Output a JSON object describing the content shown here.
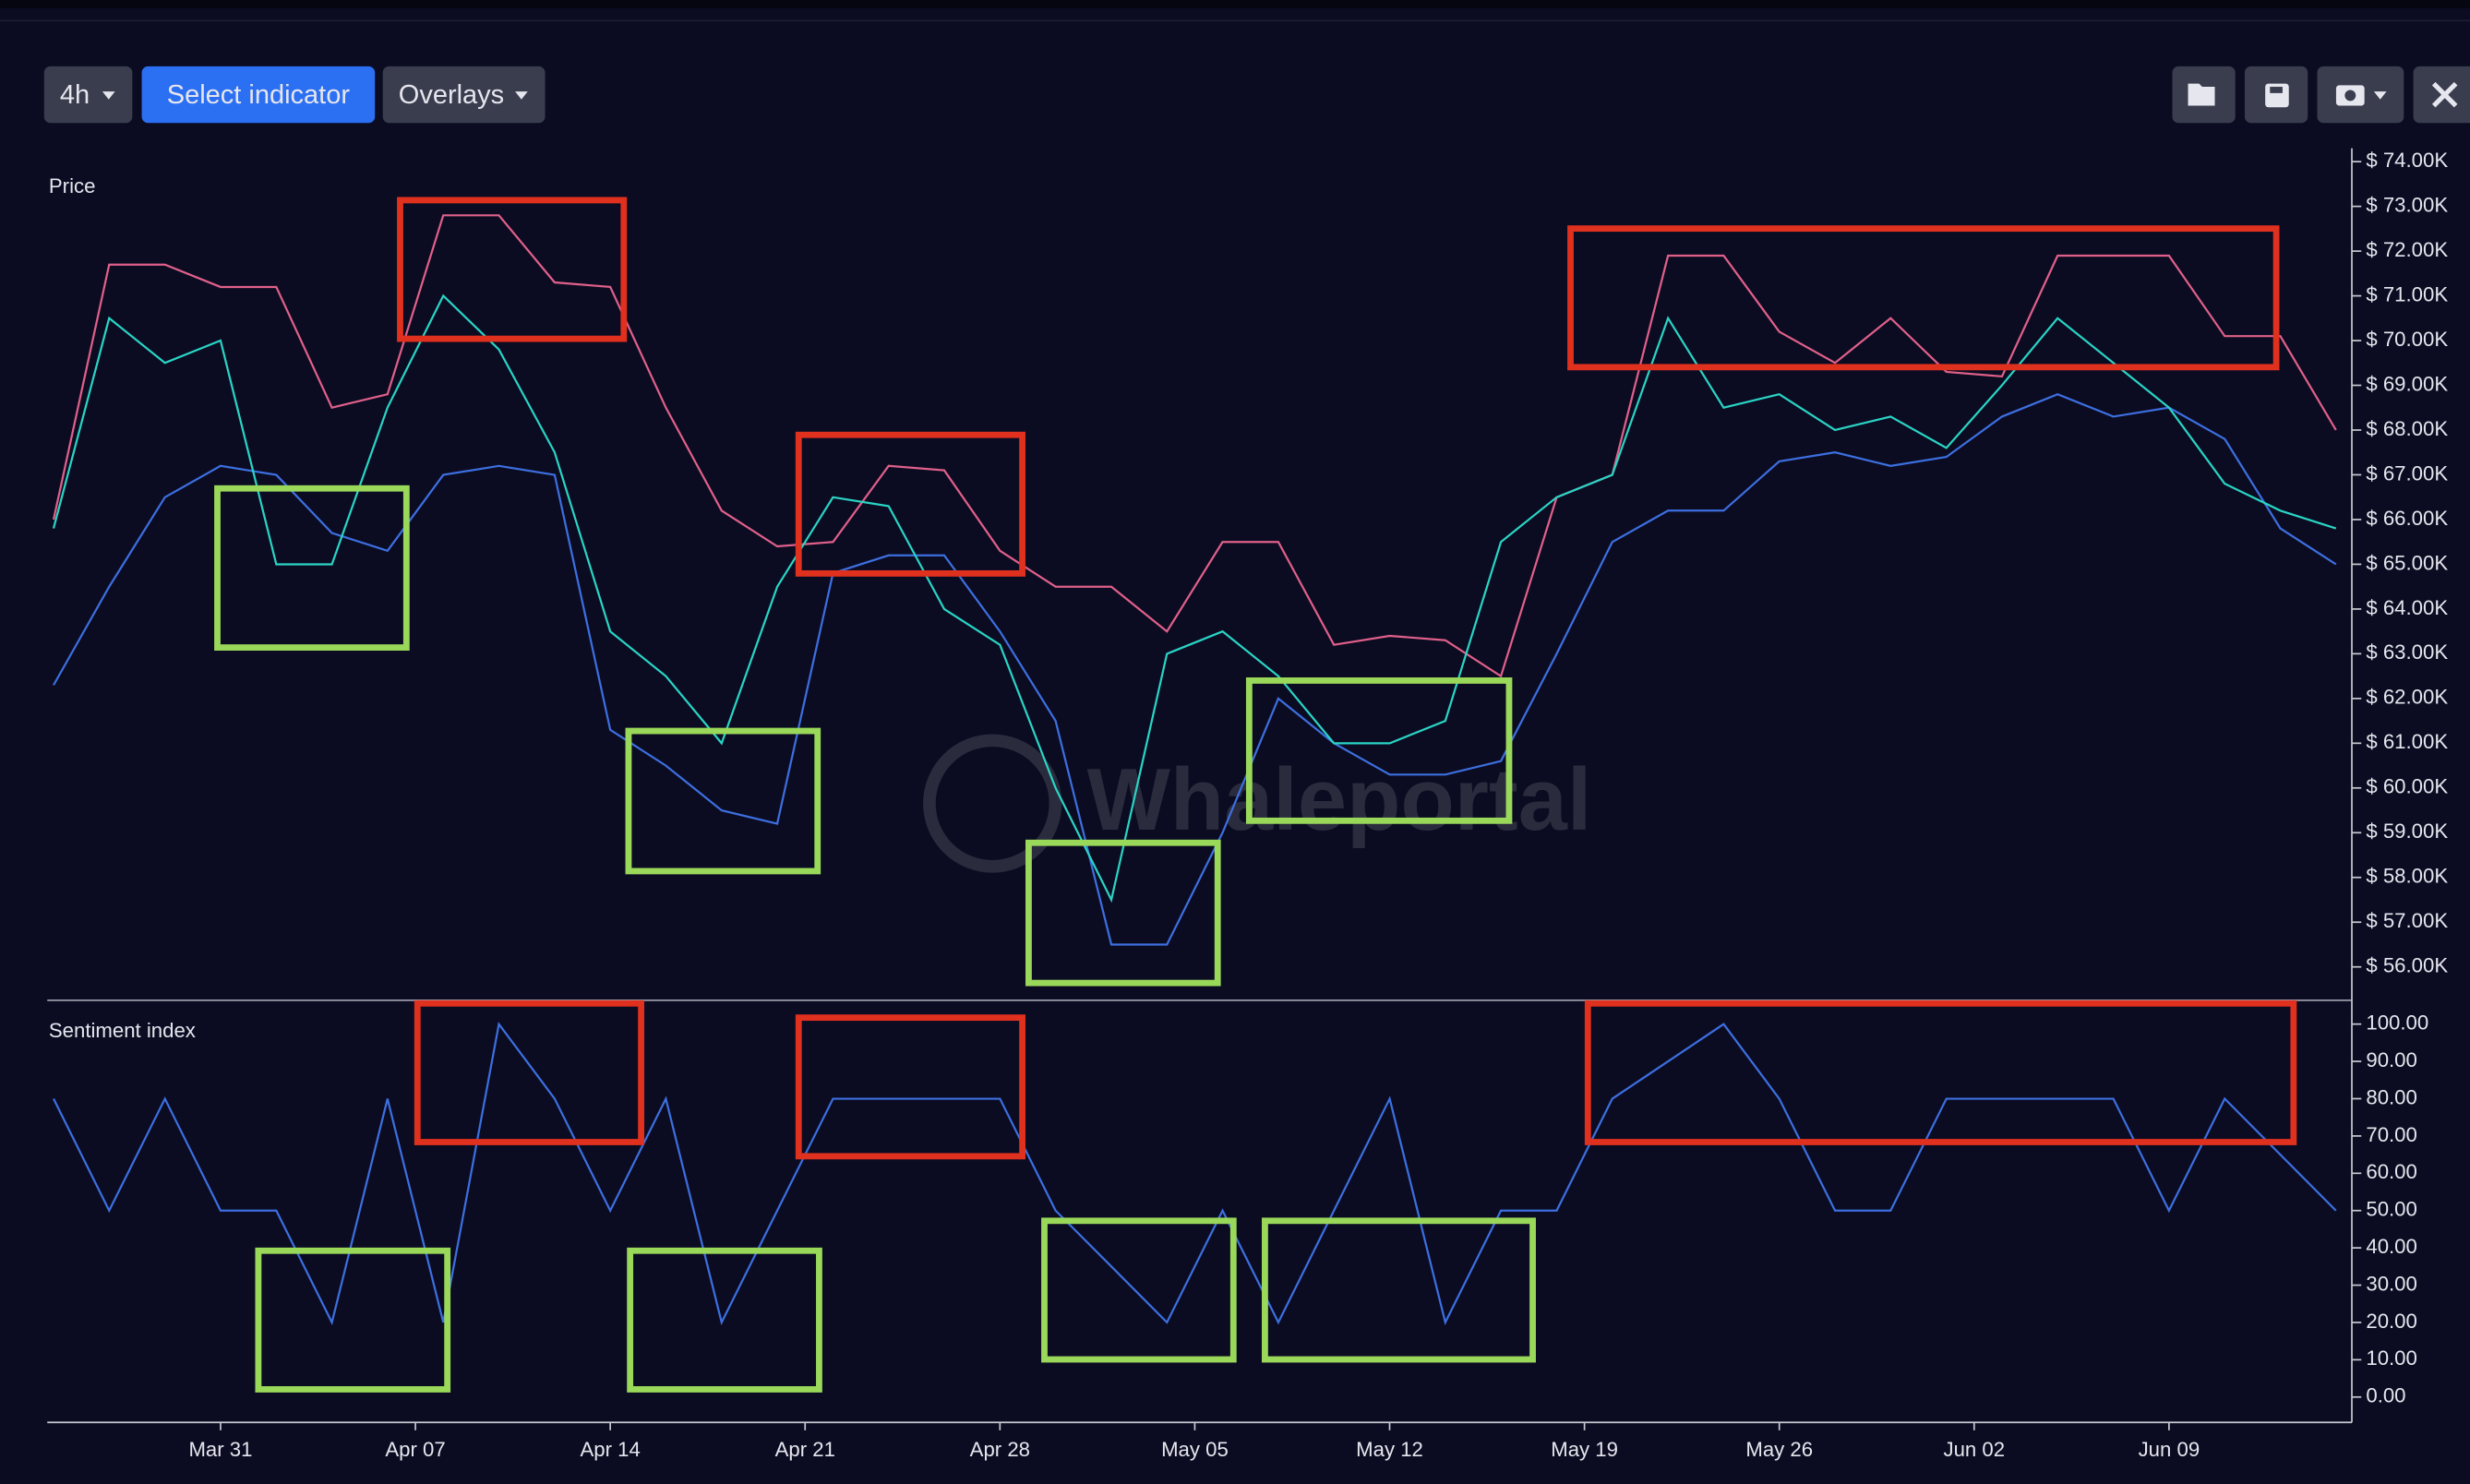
{
  "toolbar": {
    "interval": "4h",
    "indicator_button": "Select indicator",
    "overlays_button": "Overlays"
  },
  "watermark": "Whaleportal",
  "chart_data": [
    {
      "type": "line",
      "title": "Price",
      "x": [
        "Mar 25",
        "Mar 27",
        "Mar 29",
        "Mar 31",
        "Apr 02",
        "Apr 04",
        "Apr 06",
        "Apr 08",
        "Apr 10",
        "Apr 12",
        "Apr 14",
        "Apr 16",
        "Apr 18",
        "Apr 20",
        "Apr 22",
        "Apr 24",
        "Apr 26",
        "Apr 28",
        "Apr 30",
        "May 02",
        "May 04",
        "May 06",
        "May 08",
        "May 10",
        "May 12",
        "May 14",
        "May 16",
        "May 18",
        "May 20",
        "May 22",
        "May 24",
        "May 26",
        "May 28",
        "May 30",
        "Jun 01",
        "Jun 03",
        "Jun 05",
        "Jun 07",
        "Jun 09",
        "Jun 11",
        "Jun 13",
        "Jun 15"
      ],
      "series": [
        {
          "color": "#e0608a",
          "values": [
            66000,
            71700,
            71700,
            71200,
            71200,
            68500,
            68800,
            72800,
            72800,
            71300,
            71200,
            68500,
            66200,
            65400,
            65500,
            67200,
            67100,
            65300,
            64500,
            64500,
            63500,
            65500,
            65500,
            63200,
            63400,
            63300,
            62500,
            66500,
            67000,
            71900,
            71900,
            70200,
            69500,
            70500,
            69300,
            69200,
            71900,
            71900,
            71900,
            70100,
            70100,
            68000
          ]
        },
        {
          "color": "#3d6fe0",
          "values": [
            62300,
            64500,
            66500,
            67200,
            67000,
            65700,
            65300,
            67000,
            67200,
            67000,
            61300,
            60500,
            59500,
            59200,
            64800,
            65200,
            65200,
            63500,
            61500,
            56500,
            56500,
            59000,
            62000,
            61000,
            60300,
            60300,
            60600,
            63000,
            65500,
            66200,
            66200,
            67300,
            67500,
            67200,
            67400,
            68300,
            68800,
            68300,
            68500,
            67800,
            65800,
            65000
          ]
        },
        {
          "color": "#2ad4c4",
          "values": [
            65800,
            70500,
            69500,
            70000,
            65000,
            65000,
            68500,
            71000,
            69800,
            67500,
            63500,
            62500,
            61000,
            64500,
            66500,
            66300,
            64000,
            63200,
            60000,
            57500,
            63000,
            63500,
            62500,
            61000,
            61000,
            61500,
            65500,
            66500,
            67000,
            70500,
            68500,
            68800,
            68000,
            68300,
            67600,
            69000,
            70500,
            69500,
            68500,
            66800,
            66200,
            65800
          ]
        }
      ],
      "ylim": [
        55500,
        74300
      ],
      "yticks": [
        {
          "value": 56000,
          "label": "$ 56.00K"
        },
        {
          "value": 57000,
          "label": "$ 57.00K"
        },
        {
          "value": 58000,
          "label": "$ 58.00K"
        },
        {
          "value": 59000,
          "label": "$ 59.00K"
        },
        {
          "value": 60000,
          "label": "$ 60.00K"
        },
        {
          "value": 61000,
          "label": "$ 61.00K"
        },
        {
          "value": 62000,
          "label": "$ 62.00K"
        },
        {
          "value": 63000,
          "label": "$ 63.00K"
        },
        {
          "value": 64000,
          "label": "$ 64.00K"
        },
        {
          "value": 65000,
          "label": "$ 65.00K"
        },
        {
          "value": 66000,
          "label": "$ 66.00K"
        },
        {
          "value": 67000,
          "label": "$ 67.00K"
        },
        {
          "value": 68000,
          "label": "$ 68.00K"
        },
        {
          "value": 69000,
          "label": "$ 69.00K"
        },
        {
          "value": 70000,
          "label": "$ 70.00K"
        },
        {
          "value": 71000,
          "label": "$ 71.00K"
        },
        {
          "value": 72000,
          "label": "$ 72.00K"
        },
        {
          "value": 73000,
          "label": "$ 73.00K"
        },
        {
          "value": 74000,
          "label": "$ 74.00K"
        }
      ]
    },
    {
      "type": "line",
      "title": "Sentiment index",
      "x": [
        "Mar 25",
        "Mar 27",
        "Mar 29",
        "Mar 31",
        "Apr 02",
        "Apr 04",
        "Apr 06",
        "Apr 08",
        "Apr 10",
        "Apr 12",
        "Apr 14",
        "Apr 16",
        "Apr 18",
        "Apr 20",
        "Apr 22",
        "Apr 24",
        "Apr 26",
        "Apr 28",
        "Apr 30",
        "May 02",
        "May 04",
        "May 06",
        "May 08",
        "May 10",
        "May 12",
        "May 14",
        "May 16",
        "May 18",
        "May 20",
        "May 22",
        "May 24",
        "May 26",
        "May 28",
        "May 30",
        "Jun 01",
        "Jun 03",
        "Jun 05",
        "Jun 07",
        "Jun 09",
        "Jun 11",
        "Jun 13",
        "Jun 15"
      ],
      "series": [
        {
          "color": "#3d6fe0",
          "values": [
            80,
            50,
            80,
            50,
            50,
            20,
            80,
            20,
            100,
            80,
            50,
            80,
            20,
            50,
            80,
            80,
            80,
            80,
            50,
            35,
            20,
            50,
            20,
            50,
            80,
            20,
            50,
            50,
            80,
            90,
            100,
            80,
            50,
            50,
            80,
            80,
            80,
            80,
            50,
            80,
            65,
            50
          ]
        }
      ],
      "ylim": [
        -3,
        103
      ],
      "yticks": [
        {
          "value": 0,
          "label": "0.00"
        },
        {
          "value": 10,
          "label": "10.00"
        },
        {
          "value": 20,
          "label": "20.00"
        },
        {
          "value": 30,
          "label": "30.00"
        },
        {
          "value": 40,
          "label": "40.00"
        },
        {
          "value": 50,
          "label": "50.00"
        },
        {
          "value": 60,
          "label": "60.00"
        },
        {
          "value": 70,
          "label": "70.00"
        },
        {
          "value": 80,
          "label": "80.00"
        },
        {
          "value": 90,
          "label": "90.00"
        },
        {
          "value": 100,
          "label": "100.00"
        }
      ],
      "xticks": [
        "Mar 31",
        "Apr 07",
        "Apr 14",
        "Apr 21",
        "Apr 28",
        "May 05",
        "May 12",
        "May 19",
        "May 26",
        "Jun 02",
        "Jun 09"
      ]
    }
  ]
}
